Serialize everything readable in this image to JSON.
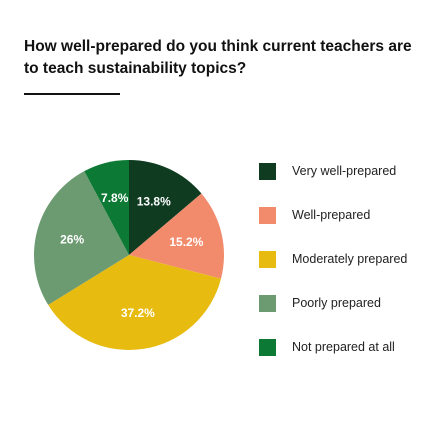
{
  "chart_data": {
    "type": "pie",
    "title": "How well-prepared do you think current teachers are to teach sustainability topics?",
    "categories": [
      "Very well-prepared",
      "Well-prepared",
      "Moderately prepared",
      "Poorly prepared",
      "Not prepared at all"
    ],
    "values": [
      13.8,
      15.2,
      37.2,
      26,
      7.8
    ],
    "value_labels": [
      "13.8%",
      "15.2%",
      "37.2%",
      "26%",
      "7.8%"
    ],
    "colors": [
      "#0f3b21",
      "#f28b6c",
      "#e7bb10",
      "#6c9b72",
      "#0c7a35"
    ],
    "legend_position": "right"
  }
}
